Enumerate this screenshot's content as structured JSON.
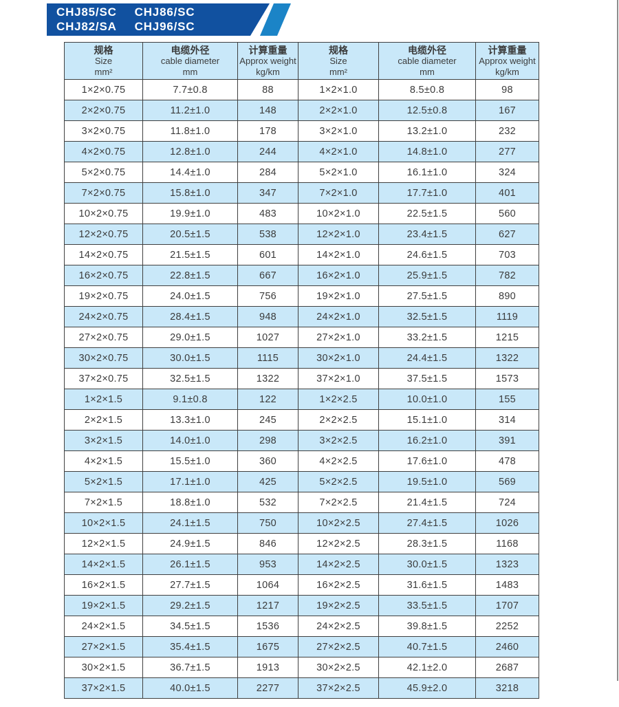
{
  "banner": {
    "line1": [
      "CHJ85/SC",
      "CHJ86/SC"
    ],
    "line2": [
      "CHJ82/SA",
      "CHJ96/SC"
    ]
  },
  "colors": {
    "banner_dark": "#1151a0",
    "banner_light": "#1b84c7",
    "row_alt": "#c9e8f9",
    "border": "#3f3f3f",
    "text": "#3b3b3b",
    "page_edge": "#8c8c8c"
  },
  "table": {
    "columns": [
      {
        "cn": "规格",
        "en": "Size",
        "unit": "mm²"
      },
      {
        "cn": "电缆外径",
        "en": "cable diameter",
        "unit": "mm"
      },
      {
        "cn": "计算重量",
        "en": "Approx weight",
        "unit": "kg/km"
      },
      {
        "cn": "规格",
        "en": "Size",
        "unit": "mm²"
      },
      {
        "cn": "电缆外径",
        "en": "cable diameter",
        "unit": "mm"
      },
      {
        "cn": "计算重量",
        "en": "Approx weight",
        "unit": "kg/km"
      }
    ],
    "rows": [
      [
        "1×2×0.75",
        "7.7±0.8",
        "88",
        "1×2×1.0",
        "8.5±0.8",
        "98"
      ],
      [
        "2×2×0.75",
        "11.2±1.0",
        "148",
        "2×2×1.0",
        "12.5±0.8",
        "167"
      ],
      [
        "3×2×0.75",
        "11.8±1.0",
        "178",
        "3×2×1.0",
        "13.2±1.0",
        "232"
      ],
      [
        "4×2×0.75",
        "12.8±1.0",
        "244",
        "4×2×1.0",
        "14.8±1.0",
        "277"
      ],
      [
        "5×2×0.75",
        "14.4±1.0",
        "284",
        "5×2×1.0",
        "16.1±1.0",
        "324"
      ],
      [
        "7×2×0.75",
        "15.8±1.0",
        "347",
        "7×2×1.0",
        "17.7±1.0",
        "401"
      ],
      [
        "10×2×0.75",
        "19.9±1.0",
        "483",
        "10×2×1.0",
        "22.5±1.5",
        "560"
      ],
      [
        "12×2×0.75",
        "20.5±1.5",
        "538",
        "12×2×1.0",
        "23.4±1.5",
        "627"
      ],
      [
        "14×2×0.75",
        "21.5±1.5",
        "601",
        "14×2×1.0",
        "24.6±1.5",
        "703"
      ],
      [
        "16×2×0.75",
        "22.8±1.5",
        "667",
        "16×2×1.0",
        "25.9±1.5",
        "782"
      ],
      [
        "19×2×0.75",
        "24.0±1.5",
        "756",
        "19×2×1.0",
        "27.5±1.5",
        "890"
      ],
      [
        "24×2×0.75",
        "28.4±1.5",
        "948",
        "24×2×1.0",
        "32.5±1.5",
        "1119"
      ],
      [
        "27×2×0.75",
        "29.0±1.5",
        "1027",
        "27×2×1.0",
        "33.2±1.5",
        "1215"
      ],
      [
        "30×2×0.75",
        "30.0±1.5",
        "1115",
        "30×2×1.0",
        "24.4±1.5",
        "1322"
      ],
      [
        "37×2×0.75",
        "32.5±1.5",
        "1322",
        "37×2×1.0",
        "37.5±1.5",
        "1573"
      ],
      [
        "1×2×1.5",
        "9.1±0.8",
        "122",
        "1×2×2.5",
        "10.0±1.0",
        "155"
      ],
      [
        "2×2×1.5",
        "13.3±1.0",
        "245",
        "2×2×2.5",
        "15.1±1.0",
        "314"
      ],
      [
        "3×2×1.5",
        "14.0±1.0",
        "298",
        "3×2×2.5",
        "16.2±1.0",
        "391"
      ],
      [
        "4×2×1.5",
        "15.5±1.0",
        "360",
        "4×2×2.5",
        "17.6±1.0",
        "478"
      ],
      [
        "5×2×1.5",
        "17.1±1.0",
        "425",
        "5×2×2.5",
        "19.5±1.0",
        "569"
      ],
      [
        "7×2×1.5",
        "18.8±1.0",
        "532",
        "7×2×2.5",
        "21.4±1.5",
        "724"
      ],
      [
        "10×2×1.5",
        "24.1±1.5",
        "750",
        "10×2×2.5",
        "27.4±1.5",
        "1026"
      ],
      [
        "12×2×1.5",
        "24.9±1.5",
        "846",
        "12×2×2.5",
        "28.3±1.5",
        "1168"
      ],
      [
        "14×2×1.5",
        "26.1±1.5",
        "953",
        "14×2×2.5",
        "30.0±1.5",
        "1323"
      ],
      [
        "16×2×1.5",
        "27.7±1.5",
        "1064",
        "16×2×2.5",
        "31.6±1.5",
        "1483"
      ],
      [
        "19×2×1.5",
        "29.2±1.5",
        "1217",
        "19×2×2.5",
        "33.5±1.5",
        "1707"
      ],
      [
        "24×2×1.5",
        "34.5±1.5",
        "1536",
        "24×2×2.5",
        "39.8±1.5",
        "2252"
      ],
      [
        "27×2×1.5",
        "35.4±1.5",
        "1675",
        "27×2×2.5",
        "40.7±1.5",
        "2460"
      ],
      [
        "30×2×1.5",
        "36.7±1.5",
        "1913",
        "30×2×2.5",
        "42.1±2.0",
        "2687"
      ],
      [
        "37×2×1.5",
        "40.0±1.5",
        "2277",
        "37×2×2.5",
        "45.9±2.0",
        "3218"
      ]
    ]
  }
}
